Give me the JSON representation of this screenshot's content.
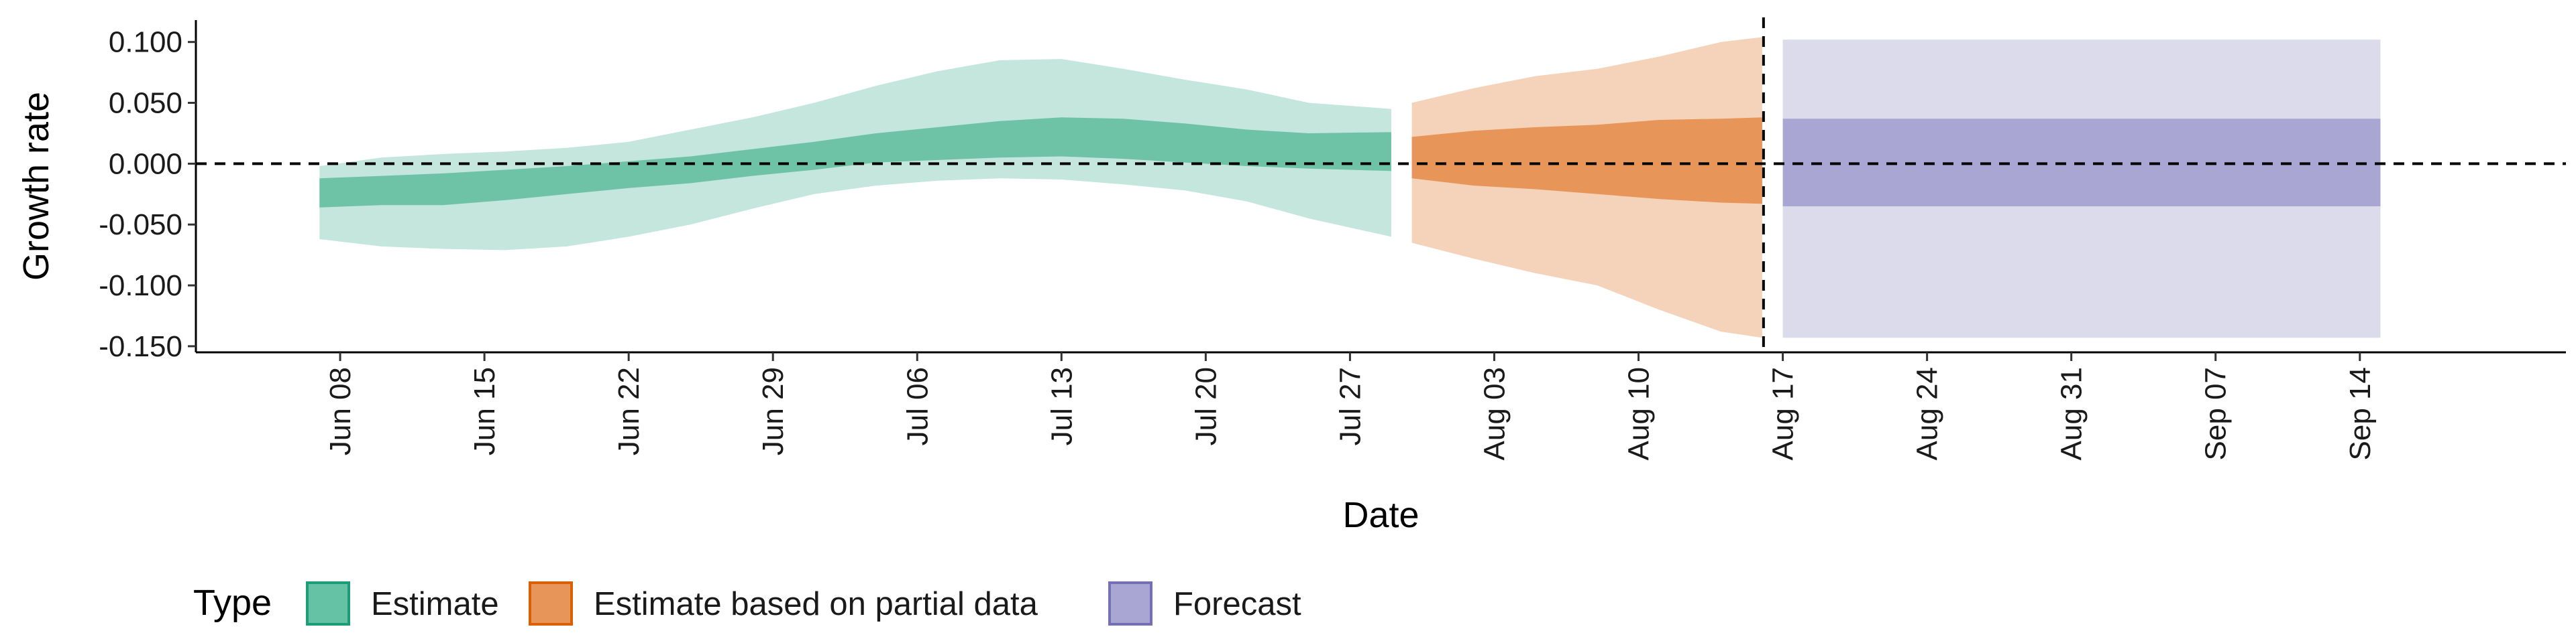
{
  "chart_data": {
    "type": "area",
    "title": "",
    "xlabel": "Date",
    "ylabel": "Growth rate",
    "x_tick_labels": [
      "Jun 08",
      "Jun 15",
      "Jun 22",
      "Jun 29",
      "Jul 06",
      "Jul 13",
      "Jul 20",
      "Jul 27",
      "Aug 03",
      "Aug 10",
      "Aug 17",
      "Aug 24",
      "Aug 31",
      "Sep 07",
      "Sep 14"
    ],
    "x_tick_dates": [
      "2020-06-08",
      "2020-06-15",
      "2020-06-22",
      "2020-06-29",
      "2020-07-06",
      "2020-07-13",
      "2020-07-20",
      "2020-07-27",
      "2020-08-03",
      "2020-08-10",
      "2020-08-17",
      "2020-08-24",
      "2020-08-31",
      "2020-09-07",
      "2020-09-14"
    ],
    "y_tick_labels": [
      "0.100",
      "0.050",
      "0.000",
      "-0.050",
      "-0.100",
      "-0.150"
    ],
    "y_ticks": [
      0.1,
      0.05,
      0,
      -0.05,
      -0.1,
      -0.15
    ],
    "xlim": [
      "2020-06-01",
      "2020-09-24"
    ],
    "ylim": [
      -0.155,
      0.118
    ],
    "grid": false,
    "legend_position": "bottom",
    "reference_lines": {
      "horizontal_y": 0,
      "vertical_date": "2020-08-16"
    },
    "legend": {
      "title": "Type",
      "entries": [
        {
          "label": "Estimate",
          "fill": "#66c2a5",
          "border": "#1b9e77"
        },
        {
          "label": "Estimate based on partial data",
          "fill": "#e8955a",
          "border": "#d95f02"
        },
        {
          "label": "Forecast",
          "fill": "#a9a6d3",
          "border": "#7570b3"
        }
      ]
    },
    "series": [
      {
        "name": "Estimate",
        "colors": {
          "outer": "#c4e6dc",
          "inner": "#6ec3a7"
        },
        "x": [
          "2020-06-07",
          "2020-06-10",
          "2020-06-13",
          "2020-06-16",
          "2020-06-19",
          "2020-06-22",
          "2020-06-25",
          "2020-06-28",
          "2020-07-01",
          "2020-07-04",
          "2020-07-07",
          "2020-07-10",
          "2020-07-13",
          "2020-07-16",
          "2020-07-19",
          "2020-07-22",
          "2020-07-25",
          "2020-07-29"
        ],
        "outer_upper": [
          -0.002,
          0.005,
          0.008,
          0.01,
          0.013,
          0.018,
          0.028,
          0.038,
          0.05,
          0.064,
          0.076,
          0.085,
          0.086,
          0.078,
          0.069,
          0.061,
          0.05,
          0.045
        ],
        "inner_upper": [
          -0.012,
          -0.01,
          -0.008,
          -0.005,
          -0.002,
          0.002,
          0.006,
          0.012,
          0.018,
          0.025,
          0.03,
          0.035,
          0.038,
          0.037,
          0.033,
          0.028,
          0.025,
          0.026
        ],
        "inner_lower": [
          -0.036,
          -0.034,
          -0.034,
          -0.03,
          -0.025,
          -0.02,
          -0.016,
          -0.01,
          -0.005,
          0.001,
          0.003,
          0.005,
          0.006,
          0.004,
          0.001,
          -0.002,
          -0.004,
          -0.006
        ],
        "outer_lower": [
          -0.062,
          -0.068,
          -0.07,
          -0.071,
          -0.068,
          -0.06,
          -0.05,
          -0.037,
          -0.025,
          -0.018,
          -0.014,
          -0.012,
          -0.013,
          -0.017,
          -0.022,
          -0.031,
          -0.045,
          -0.06
        ]
      },
      {
        "name": "Estimate based on partial data",
        "colors": {
          "outer": "#f5d3ba",
          "inner": "#e8955a"
        },
        "x": [
          "2020-07-30",
          "2020-08-02",
          "2020-08-05",
          "2020-08-08",
          "2020-08-11",
          "2020-08-14",
          "2020-08-16"
        ],
        "outer_upper": [
          0.05,
          0.062,
          0.072,
          0.078,
          0.088,
          0.1,
          0.104
        ],
        "inner_upper": [
          0.022,
          0.027,
          0.03,
          0.032,
          0.036,
          0.037,
          0.038
        ],
        "inner_lower": [
          -0.012,
          -0.018,
          -0.021,
          -0.025,
          -0.029,
          -0.032,
          -0.033
        ],
        "outer_lower": [
          -0.065,
          -0.078,
          -0.09,
          -0.1,
          -0.12,
          -0.138,
          -0.143
        ]
      },
      {
        "name": "Forecast",
        "colors": {
          "outer": "#dcdbeb",
          "inner": "#a9a6d3"
        },
        "x": [
          "2020-08-17",
          "2020-09-15"
        ],
        "outer_upper": [
          0.102,
          0.102
        ],
        "inner_upper": [
          0.037,
          0.037
        ],
        "inner_lower": [
          -0.035,
          -0.035
        ],
        "outer_lower": [
          -0.143,
          -0.143
        ]
      }
    ]
  }
}
